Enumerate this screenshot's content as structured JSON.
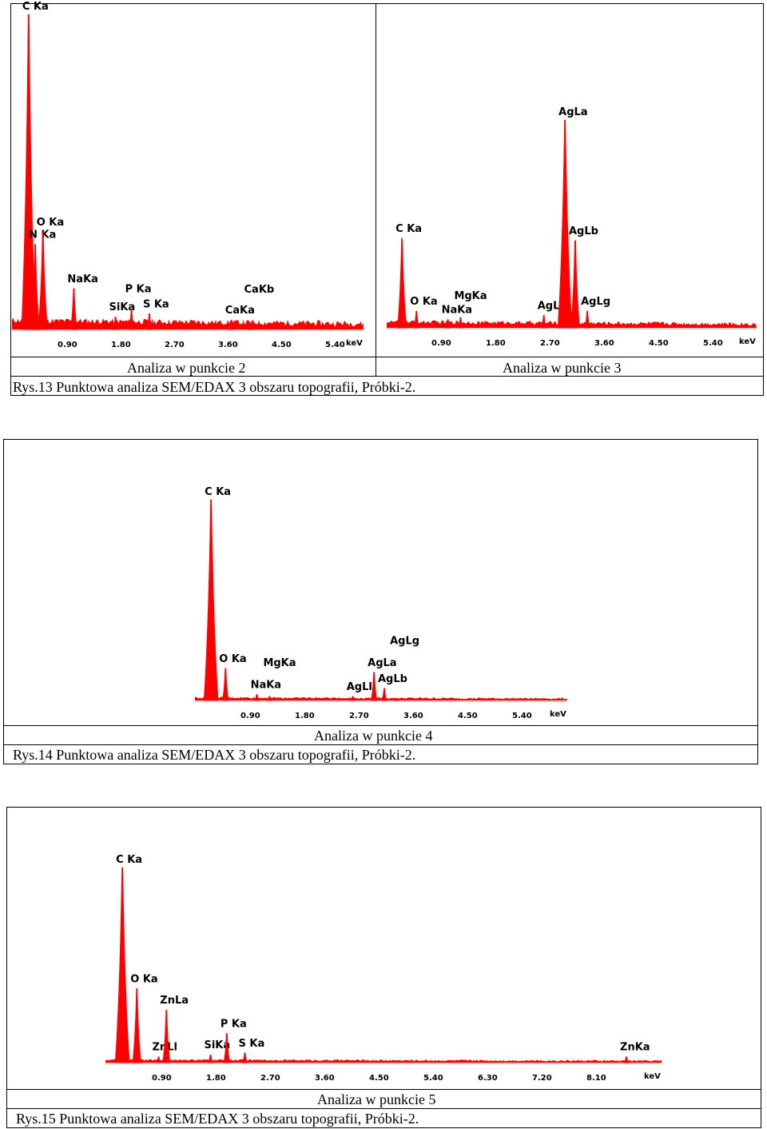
{
  "figures": [
    {
      "caption": "Rys.13 Punktowa analiza SEM/EDAX 3 obszaru topografii, Próbki-2.",
      "panels": [
        {
          "title": "Analiza w punkcie 2"
        },
        {
          "title": "Analiza w punkcie 3"
        }
      ]
    },
    {
      "caption": "Rys.14 Punktowa analiza SEM/EDAX 3 obszaru topografii, Próbki-2.",
      "panels": [
        {
          "title": "Analiza w punkcie 4"
        }
      ]
    },
    {
      "caption": "Rys.15 Punktowa analiza SEM/EDAX 3 obszaru topografii, Próbki-2.",
      "panels": [
        {
          "title": "Analiza w punkcie 5"
        }
      ]
    }
  ],
  "chart_data": [
    {
      "id": "p2",
      "type": "spectrum",
      "title": "Analiza w punkcie 2",
      "xlabel": "keV",
      "xlim": [
        0,
        6.0
      ],
      "ylim": [
        0,
        100
      ],
      "x_ticks": [
        "0.90",
        "1.80",
        "2.70",
        "3.60",
        "4.50",
        "5.40"
      ],
      "background": 2,
      "peaks": [
        {
          "label": "C Ka",
          "energy": 0.28,
          "intensity": 100
        },
        {
          "label": "N Ka",
          "energy": 0.39,
          "intensity": 27
        },
        {
          "label": "O Ka",
          "energy": 0.52,
          "intensity": 31
        },
        {
          "label": "NaKa",
          "energy": 1.04,
          "intensity": 13
        },
        {
          "label": "SiKa",
          "energy": 1.74,
          "intensity": 4
        },
        {
          "label": "P Ka",
          "energy": 2.01,
          "intensity": 6
        },
        {
          "label": "S Ka",
          "energy": 2.31,
          "intensity": 5
        },
        {
          "label": "CaKa",
          "energy": 3.69,
          "intensity": 3
        },
        {
          "label": "CaKb",
          "energy": 4.01,
          "intensity": 2
        }
      ]
    },
    {
      "id": "p3",
      "type": "spectrum",
      "title": "Analiza w punkcie 3",
      "xlabel": "keV",
      "xlim": [
        0,
        6.0
      ],
      "ylim": [
        0,
        100
      ],
      "x_ticks": [
        "0.90",
        "1.80",
        "2.70",
        "3.60",
        "4.50",
        "5.40"
      ],
      "background": 2,
      "peaks": [
        {
          "label": "C Ka",
          "energy": 0.28,
          "intensity": 43
        },
        {
          "label": "O Ka",
          "energy": 0.52,
          "intensity": 8
        },
        {
          "label": "NaKa",
          "energy": 1.04,
          "intensity": 4
        },
        {
          "label": "MgKa",
          "energy": 1.25,
          "intensity": 5
        },
        {
          "label": "AgLl",
          "energy": 2.63,
          "intensity": 6
        },
        {
          "label": "AgLa",
          "energy": 2.98,
          "intensity": 100
        },
        {
          "label": "AgLb",
          "energy": 3.15,
          "intensity": 42
        },
        {
          "label": "AgLg",
          "energy": 3.35,
          "intensity": 8
        }
      ]
    },
    {
      "id": "p4",
      "type": "spectrum",
      "title": "Analiza w punkcie 4",
      "xlabel": "keV",
      "xlim": [
        0,
        6.0
      ],
      "ylim": [
        0,
        100
      ],
      "x_ticks": [
        "0.90",
        "1.80",
        "2.70",
        "3.60",
        "4.50",
        "5.40"
      ],
      "background": 1,
      "peaks": [
        {
          "label": "C Ka",
          "energy": 0.28,
          "intensity": 100
        },
        {
          "label": "O Ka",
          "energy": 0.52,
          "intensity": 16
        },
        {
          "label": "NaKa",
          "energy": 1.04,
          "intensity": 3
        },
        {
          "label": "MgKa",
          "energy": 1.25,
          "intensity": 2
        },
        {
          "label": "AgLl",
          "energy": 2.63,
          "intensity": 2
        },
        {
          "label": "AgLa",
          "energy": 2.98,
          "intensity": 14
        },
        {
          "label": "AgLb",
          "energy": 3.15,
          "intensity": 6
        },
        {
          "label": "AgLg",
          "energy": 3.35,
          "intensity": 1
        }
      ]
    },
    {
      "id": "p5",
      "type": "spectrum",
      "title": "Analiza w punkcie 5",
      "xlabel": "keV",
      "xlim": [
        0,
        9.0
      ],
      "ylim": [
        0,
        100
      ],
      "x_ticks": [
        "0.90",
        "1.80",
        "2.70",
        "3.60",
        "4.50",
        "5.40",
        "6.30",
        "7.20",
        "8.10"
      ],
      "background": 1,
      "peaks": [
        {
          "label": "C Ka",
          "energy": 0.28,
          "intensity": 100
        },
        {
          "label": "O Ka",
          "energy": 0.52,
          "intensity": 38
        },
        {
          "label": "ZnLl",
          "energy": 0.88,
          "intensity": 3
        },
        {
          "label": "ZnLa",
          "energy": 1.01,
          "intensity": 27
        },
        {
          "label": "SiKa",
          "energy": 1.74,
          "intensity": 4
        },
        {
          "label": "P Ka",
          "energy": 2.01,
          "intensity": 15
        },
        {
          "label": "S Ka",
          "energy": 2.31,
          "intensity": 5
        },
        {
          "label": "ZnKa",
          "energy": 8.63,
          "intensity": 3
        }
      ]
    }
  ]
}
